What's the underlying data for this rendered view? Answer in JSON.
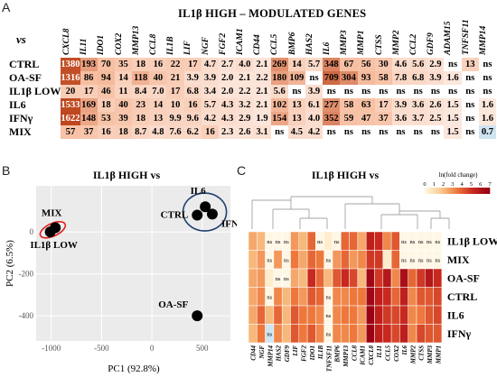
{
  "panel_a": {
    "letter": "A",
    "title": "IL1β HIGH – MODULATED GENES",
    "vs_label": "vs",
    "genes": [
      "CXCL8",
      "IL11",
      "IDO1",
      "COX2",
      "MMP13",
      "CCL8",
      "IL1B",
      "LIF",
      "NGF",
      "FGF2",
      "ICAM1",
      "CD44",
      "CCL5",
      "BMP6",
      "HAS2",
      "IL6",
      "MMP3",
      "MMP1",
      "CTSS",
      "MMP2",
      "CCL2",
      "GDF9",
      "ADAM15",
      "TNFSF11",
      "MMP14"
    ],
    "rows": [
      {
        "label": "CTRL",
        "values": [
          "1380",
          "193",
          "70",
          "35",
          "18",
          "16",
          "22",
          "17",
          "4.7",
          "2.7",
          "4.0",
          "2.1",
          "269",
          "14",
          "5.7",
          "348",
          "67",
          "56",
          "30",
          "4.6",
          "5.6",
          "2.9",
          "ns",
          "13",
          "ns"
        ]
      },
      {
        "label": "OA-SF",
        "values": [
          "1316",
          "86",
          "94",
          "14",
          "118",
          "40",
          "21",
          "3.9",
          "3.9",
          "2.0",
          "2.1",
          "2.2",
          "180",
          "109",
          "ns",
          "709",
          "304",
          "93",
          "58",
          "7.8",
          "6.8",
          "3.9",
          "1.6",
          "ns",
          "ns"
        ]
      },
      {
        "label": "IL1β LOW",
        "values": [
          "20",
          "17",
          "46",
          "11",
          "8.4",
          "7.0",
          "17",
          "6.8",
          "3.4",
          "2.0",
          "2.2",
          "2.1",
          "5.6",
          "ns",
          "3.9",
          "ns",
          "ns",
          "ns",
          "ns",
          "ns",
          "ns",
          "ns",
          "ns",
          "ns",
          "ns"
        ]
      },
      {
        "label": "IL6",
        "values": [
          "1533",
          "169",
          "18",
          "40",
          "23",
          "14",
          "10",
          "16",
          "5.7",
          "4.3",
          "3.2",
          "2.1",
          "102",
          "13",
          "6.1",
          "277",
          "58",
          "63",
          "17",
          "3.9",
          "3.6",
          "2.6",
          "1.5",
          "ns",
          "1.6"
        ]
      },
      {
        "label": "IFNγ",
        "values": [
          "1622",
          "148",
          "53",
          "39",
          "18",
          "13",
          "9.9",
          "9.6",
          "4.2",
          "4.3",
          "2.9",
          "1.9",
          "154",
          "13",
          "4.0",
          "352",
          "59",
          "47",
          "37",
          "3.6",
          "3.7",
          "2.5",
          "1.5",
          "ns",
          "1.6"
        ]
      },
      {
        "label": "MIX",
        "values": [
          "57",
          "37",
          "16",
          "18",
          "8.7",
          "4.8",
          "7.6",
          "6.2",
          "16",
          "2.3",
          "2.6",
          "3.1",
          "ns",
          "4.5",
          "4.2",
          "ns",
          "ns",
          "ns",
          "ns",
          "ns",
          "ns",
          "ns",
          "1.5",
          "ns",
          "0.7"
        ]
      }
    ]
  },
  "panel_b": {
    "letter": "B",
    "title": "IL1β HIGH vs",
    "xlabel": "PC1 (92.8%)",
    "ylabel": "PC2 (6.5%)",
    "xticks": [
      "-1000",
      "-500",
      "0",
      "500"
    ],
    "yticks": [
      "0",
      "-200",
      "-400"
    ],
    "labels": [
      "MIX",
      "IL1β LOW",
      "IL6",
      "CTRL",
      "IFNγ",
      "OA-SF"
    ]
  },
  "chart_data": {
    "type": "scatter",
    "title": "IL1β HIGH vs",
    "xlabel": "PC1 (92.8%)",
    "ylabel": "PC2 (6.5%)",
    "xlim": [
      -1150,
      780
    ],
    "ylim": [
      -520,
      220
    ],
    "points": [
      {
        "label": "MIX",
        "x": -960,
        "y": 20
      },
      {
        "label": "IL1β LOW",
        "x": -1010,
        "y": 0
      },
      {
        "label": "IL6",
        "x": 530,
        "y": 120
      },
      {
        "label": "CTRL",
        "x": 450,
        "y": 80
      },
      {
        "label": "IFNγ",
        "x": 600,
        "y": 85
      },
      {
        "label": "OA-SF",
        "x": 450,
        "y": -400
      }
    ]
  },
  "panel_c": {
    "letter": "C",
    "title": "IL1β HIGH vs",
    "legend_title": "ln(fold change)",
    "legend_ticks": [
      "0",
      "1",
      "2",
      "3",
      "4",
      "5",
      "6",
      "7"
    ],
    "rows": [
      "IL1β LOW",
      "MIX",
      "OA-SF",
      "CTRL",
      "IL6",
      "IFNγ"
    ],
    "cols": [
      "CD44",
      "NGF",
      "MMP14",
      "HAS2",
      "GDF9",
      "LIF",
      "FGF2",
      "IDO1",
      "IL1B",
      "TNFSF11",
      "BMP6",
      "MMP13",
      "CCL8",
      "ICAM1",
      "CXCL8",
      "IL11",
      "CCL5",
      "COX2",
      "IL6",
      "MMP2",
      "CTSS",
      "MMP3",
      "MMP1"
    ],
    "ns_label": "ns",
    "colors": {
      "low": "#fff7e6",
      "mid": "#f4a060",
      "high": "#b2182b",
      "blue": "#cce6f2"
    }
  }
}
